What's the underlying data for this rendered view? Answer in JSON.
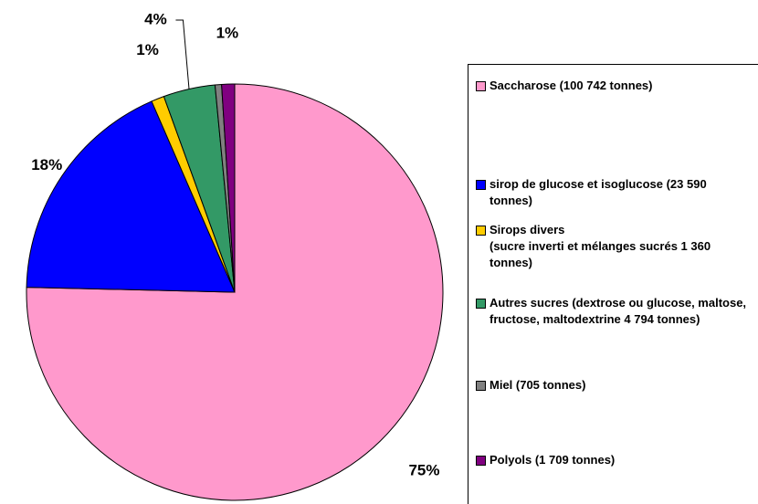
{
  "chart_data": {
    "type": "pie",
    "categories": [
      "Saccharose (100 742 tonnes)",
      "sirop de glucose et isoglucose (23 590 tonnes)",
      "Sirops divers\n(sucre inverti et mélanges sucrés 1 360 tonnes)",
      "Autres sucres (dextrose ou glucose, maltose, fructose, maltodextrine 4 794 tonnes)",
      "Miel (705 tonnes)",
      "Polyols (1 709 tonnes)"
    ],
    "values": [
      75,
      18,
      1,
      4,
      0.5,
      1
    ],
    "value_labels": [
      "75%",
      "18%",
      "1%",
      "4%",
      null,
      "1%"
    ],
    "colors": [
      "#ff99cc",
      "#0000ff",
      "#ffcc00",
      "#339966",
      "#808080",
      "#800080"
    ],
    "legend": "right"
  }
}
